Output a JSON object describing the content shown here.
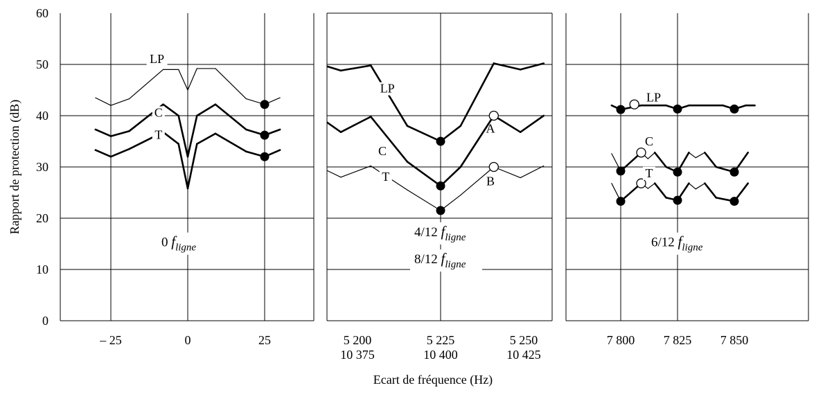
{
  "chart_data": {
    "type": "line",
    "ylabel": "Rapport de protection (dB)",
    "xlabel": "Ecart de fréquence (Hz)",
    "ylim": [
      0,
      60
    ],
    "yticks": [
      "0",
      "10",
      "20",
      "30",
      "40",
      "50",
      "60"
    ],
    "grid": true,
    "panels": [
      {
        "id": "p1",
        "xlim": [
          -37,
          37
        ],
        "xgrid": [
          -25,
          0,
          25
        ],
        "xticks": [
          {
            "x": -25,
            "lines": [
              "– 25"
            ]
          },
          {
            "x": 0,
            "lines": [
              "0"
            ]
          },
          {
            "x": 25,
            "lines": [
              "25"
            ]
          }
        ],
        "note": {
          "x": 0,
          "y": 14.5,
          "prefix": "0",
          "sub": "ligne"
        },
        "series": [
          {
            "name": "LP",
            "weight": "thin",
            "points": [
              [
                -30,
                43.5
              ],
              [
                -25,
                42
              ],
              [
                -19,
                43.3
              ],
              [
                -8,
                49
              ],
              [
                -3,
                49
              ],
              [
                0,
                45
              ],
              [
                3,
                49.2
              ],
              [
                9,
                49.2
              ],
              [
                19,
                43.3
              ],
              [
                25,
                42.2
              ],
              [
                30,
                43.5
              ]
            ],
            "markers": [
              [
                25,
                42.2
              ]
            ],
            "marker_style": "filled",
            "label": {
              "x": -10,
              "y": 50.3
            }
          },
          {
            "name": "C",
            "weight": "thick",
            "points": [
              [
                -30,
                37.3
              ],
              [
                -25,
                36
              ],
              [
                -19,
                37
              ],
              [
                -8,
                42.2
              ],
              [
                -3,
                40
              ],
              [
                0,
                32
              ],
              [
                3,
                40
              ],
              [
                9,
                42.2
              ],
              [
                19,
                37.3
              ],
              [
                25,
                36.2
              ],
              [
                30,
                37.3
              ]
            ],
            "markers": [
              [
                25,
                36.2
              ]
            ],
            "marker_style": "filled",
            "label": {
              "x": -9.5,
              "y": 39.8
            }
          },
          {
            "name": "T",
            "weight": "thick",
            "points": [
              [
                -30,
                33.3
              ],
              [
                -25,
                32
              ],
              [
                -19,
                33.5
              ],
              [
                -8,
                36.8
              ],
              [
                -3,
                34.5
              ],
              [
                0,
                25.8
              ],
              [
                3,
                34.5
              ],
              [
                9,
                36.5
              ],
              [
                19,
                33
              ],
              [
                25,
                32
              ],
              [
                30,
                33.3
              ]
            ],
            "markers": [
              [
                25,
                32
              ]
            ],
            "marker_style": "filled",
            "label": {
              "x": -9.5,
              "y": 35.5
            }
          }
        ]
      },
      {
        "id": "p2",
        "xlim": [
          -42,
          42
        ],
        "xgrid": [
          0
        ],
        "xticks": [
          {
            "x": -25,
            "lines": [
              "5 200",
              "10 375"
            ]
          },
          {
            "x": 0,
            "lines": [
              "5 225",
              "10 400"
            ]
          },
          {
            "x": 25,
            "lines": [
              "5 250",
              "10 425"
            ]
          }
        ],
        "notes": [
          {
            "x": 0,
            "y": 16.5,
            "prefix": "4/12",
            "sub": "ligne"
          },
          {
            "x": 0,
            "y": 11.2,
            "prefix": "8/12",
            "sub": "ligne"
          }
        ],
        "series": [
          {
            "name": "LP",
            "weight": "thick",
            "points": [
              [
                -37,
                50.2
              ],
              [
                -30,
                48.8
              ],
              [
                -21,
                49.8
              ],
              [
                -10,
                38
              ],
              [
                0,
                35
              ],
              [
                6,
                38
              ],
              [
                16,
                50.2
              ],
              [
                24,
                49
              ],
              [
                31,
                50.2
              ]
            ],
            "markers": [
              [
                0,
                35
              ]
            ],
            "marker_style": "filled",
            "label": {
              "x": -16,
              "y": 44.5
            }
          },
          {
            "name": "C",
            "weight": "thick",
            "points": [
              [
                -37,
                40
              ],
              [
                -30,
                36.8
              ],
              [
                -21,
                39.8
              ],
              [
                -10,
                31
              ],
              [
                0,
                26.3
              ],
              [
                6,
                30
              ],
              [
                16,
                40
              ],
              [
                24,
                36.8
              ],
              [
                31,
                40
              ]
            ],
            "markers": [
              [
                0,
                26.3
              ]
            ],
            "marker_style": "filled",
            "open_markers": [
              [
                16,
                40
              ]
            ],
            "label": {
              "x": -17.5,
              "y": 32.3
            }
          },
          {
            "name": "T",
            "weight": "thin",
            "points": [
              [
                -37,
                30.2
              ],
              [
                -30,
                28
              ],
              [
                -21,
                30.2
              ],
              [
                -10,
                25.5
              ],
              [
                0,
                21.5
              ],
              [
                6,
                24.5
              ],
              [
                16,
                30
              ],
              [
                24,
                27.9
              ],
              [
                31,
                30.2
              ]
            ],
            "markers": [
              [
                0,
                21.5
              ]
            ],
            "marker_style": "filled",
            "open_markers": [
              [
                16,
                30
              ]
            ],
            "label": {
              "x": -16.5,
              "y": 27.3
            }
          }
        ],
        "annotations": [
          {
            "text": "A",
            "x": 15,
            "y": 37.5
          },
          {
            "text": "B",
            "x": 15,
            "y": 27.2
          }
        ]
      },
      {
        "id": "p3",
        "xlim": [
          -1.5,
          50
        ],
        "xgrid": [
          0,
          25
        ],
        "xticks": [
          {
            "x": 0,
            "lines": [
              "7 800"
            ]
          },
          {
            "x": 25,
            "lines": [
              "7 825"
            ]
          },
          {
            "x": 50,
            "lines": [
              "7 850"
            ]
          }
        ],
        "note": {
          "x": 25,
          "y": 14.5,
          "prefix": "6/12",
          "sub": "ligne"
        },
        "series": [
          {
            "name": "LP",
            "weight": "thick",
            "points": [
              [
                -4,
                42
              ],
              [
                0,
                41.2
              ],
              [
                9,
                42
              ],
              [
                20,
                42
              ],
              [
                25,
                41.3
              ],
              [
                30,
                42
              ],
              [
                45,
                42
              ],
              [
                50,
                41.3
              ],
              [
                55,
                42
              ],
              [
                59,
                42
              ]
            ],
            "markers": [
              [
                0,
                41.2
              ],
              [
                25,
                41.3
              ],
              [
                50,
                41.3
              ]
            ],
            "marker_style": "filled",
            "open_markers": [
              [
                6,
                42.2
              ]
            ],
            "label": {
              "x": 14.5,
              "y": 42.8
            }
          },
          {
            "name": "C",
            "weight": "mixed",
            "points": [
              [
                -4,
                32.6
              ],
              [
                0,
                29.2
              ],
              [
                9,
                32.8
              ],
              [
                12,
                31.6
              ],
              [
                15,
                32.8
              ],
              [
                20,
                30
              ],
              [
                25,
                29
              ],
              [
                30,
                32.8
              ],
              [
                33,
                31.8
              ],
              [
                37,
                32.8
              ],
              [
                42,
                30
              ],
              [
                50,
                29
              ],
              [
                56,
                32.8
              ]
            ],
            "markers": [
              [
                0,
                29.2
              ],
              [
                25,
                29
              ],
              [
                50,
                29
              ]
            ],
            "marker_style": "filled",
            "open_markers": [
              [
                9,
                32.8
              ]
            ],
            "label": {
              "x": 12.5,
              "y": 34.2
            }
          },
          {
            "name": "T",
            "weight": "mixed",
            "points": [
              [
                -4,
                26.8
              ],
              [
                0,
                23.3
              ],
              [
                9,
                26.8
              ],
              [
                12,
                25.8
              ],
              [
                15,
                26.8
              ],
              [
                20,
                24
              ],
              [
                25,
                23.5
              ],
              [
                30,
                26.8
              ],
              [
                33,
                25.7
              ],
              [
                37,
                26.8
              ],
              [
                42,
                24
              ],
              [
                50,
                23.3
              ],
              [
                56,
                26.8
              ]
            ],
            "markers": [
              [
                0,
                23.3
              ],
              [
                25,
                23.5
              ],
              [
                50,
                23.3
              ]
            ],
            "marker_style": "filled",
            "open_markers": [
              [
                9,
                26.8
              ]
            ],
            "label": {
              "x": 12.5,
              "y": 28
            }
          }
        ]
      }
    ]
  }
}
